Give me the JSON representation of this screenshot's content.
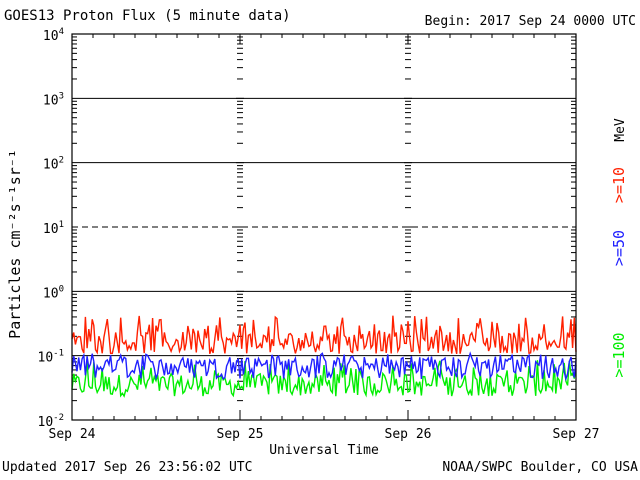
{
  "header": {
    "title": "GOES13 Proton Flux (5 minute data)",
    "begin": "Begin: 2017 Sep 24 0000 UTC"
  },
  "footer": {
    "updated": "Updated 2017 Sep 26 23:56:02 UTC",
    "credit": "NOAA/SWPC Boulder, CO USA"
  },
  "chart_data": {
    "type": "line",
    "title": "GOES13 Proton Flux (5 minute data)",
    "xlabel": "Universal Time",
    "ylabel": "Particles cm⁻²s⁻¹sr⁻¹",
    "y_scale": "log",
    "ylim": [
      0.01,
      10000
    ],
    "y_tick_labels": [
      {
        "base": "10",
        "exp": "-2",
        "value": 0.01
      },
      {
        "base": "10",
        "exp": "-1",
        "value": 0.1
      },
      {
        "base": "10",
        "exp": "0",
        "value": 1
      },
      {
        "base": "10",
        "exp": "1",
        "value": 10
      },
      {
        "base": "10",
        "exp": "2",
        "value": 100
      },
      {
        "base": "10",
        "exp": "3",
        "value": 1000
      },
      {
        "base": "10",
        "exp": "4",
        "value": 10000
      }
    ],
    "x_tick_labels": [
      "Sep 24",
      "Sep 25",
      "Sep 26",
      "Sep 27"
    ],
    "xlim_days": [
      0,
      3
    ],
    "grid": true,
    "dashed_gridline_value": 10,
    "legend_unit": "MeV",
    "legend_placement": "right",
    "series": [
      {
        "name": ">=10",
        "color": "#ff2000",
        "baseline": 0.16,
        "spike_max": 0.42,
        "note": "noisy around 0.15-0.2"
      },
      {
        "name": ">=50",
        "color": "#2020ff",
        "baseline": 0.065,
        "spike_max": 0.11
      },
      {
        "name": ">=100",
        "color": "#00ee00",
        "baseline": 0.035,
        "spike_max": 0.085
      }
    ]
  }
}
